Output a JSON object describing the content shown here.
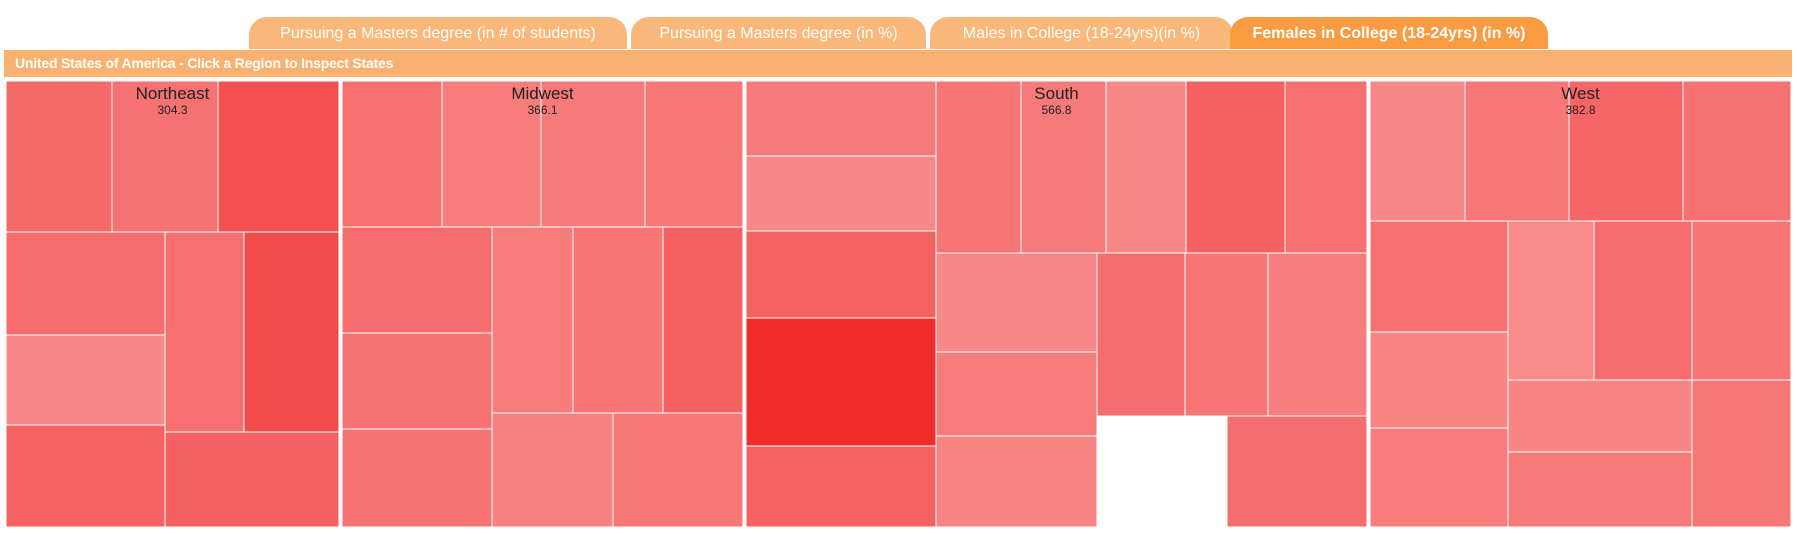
{
  "tabs": [
    {
      "label": "Pursuing a Masters degree (in # of students)",
      "active": false
    },
    {
      "label": "Pursuing a Masters degree (in %)",
      "active": false
    },
    {
      "label": "Males in College (18-24yrs)(in %)",
      "active": false
    },
    {
      "label": "Females in College (18-24yrs) (in %)",
      "active": true
    }
  ],
  "title": "United States of America - Click a Region to Inspect States",
  "chart_data": {
    "type": "treemap",
    "colors": {
      "low": "#fbb0b0",
      "high": "#f12a2a",
      "border": "#ffffff",
      "region_border": "#ffffff"
    },
    "regions": [
      {
        "name": "Northeast",
        "value": "304.3",
        "cells": [
          0.53,
          0.47,
          0.72,
          0.5,
          0.48,
          0.76,
          0.3,
          0.58,
          0.6
        ]
      },
      {
        "name": "Midwest",
        "value": "366.1",
        "cells": [
          0.48,
          0.38,
          0.4,
          0.43,
          0.5,
          0.38,
          0.44,
          0.6,
          0.46,
          0.45,
          0.36,
          0.43
        ]
      },
      {
        "name": "South",
        "value": "566.8",
        "cells": [
          0.4,
          0.3,
          0.58,
          1.0,
          0.58,
          0.44,
          0.4,
          0.3,
          0.6,
          0.48,
          0.3,
          0.38,
          0.33,
          0.5,
          0.44,
          0.37,
          0.5
        ]
      },
      {
        "name": "West",
        "value": "382.8",
        "cells": [
          0.3,
          0.43,
          0.55,
          0.46,
          0.48,
          0.33,
          0.38,
          0.28,
          0.5,
          0.44,
          0.33,
          0.4,
          0.43
        ]
      }
    ]
  }
}
